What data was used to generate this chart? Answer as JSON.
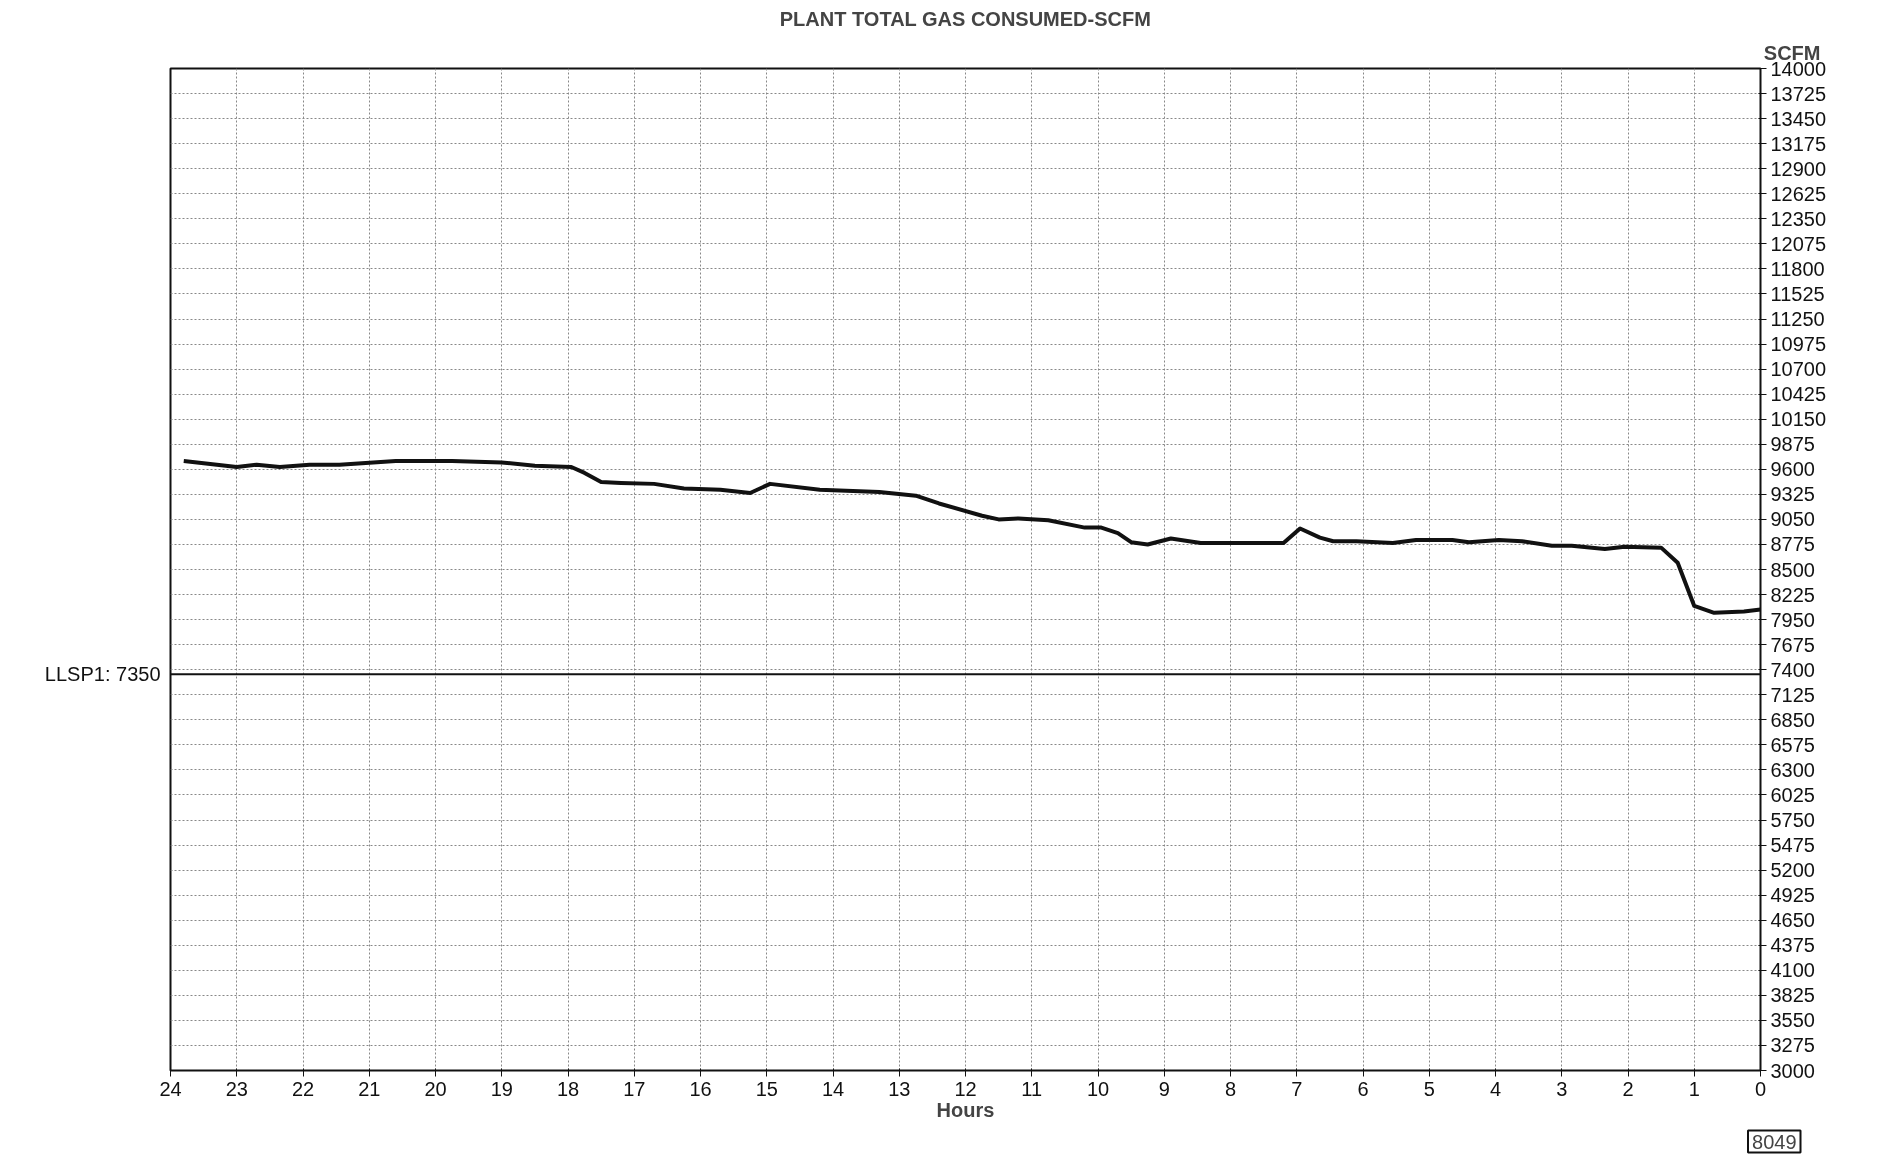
{
  "chart_data": {
    "type": "line",
    "title": "PLANT TOTAL GAS CONSUMED-SCFM",
    "xlabel": "Hours",
    "ylabel": "SCFM",
    "x": [
      23.8,
      23.0,
      22.7,
      22.35,
      21.9,
      21.45,
      20.6,
      19.75,
      19.0,
      18.5,
      17.95,
      17.75,
      17.5,
      17.2,
      16.7,
      16.25,
      15.7,
      15.25,
      14.95,
      14.2,
      13.3,
      12.75,
      12.4,
      11.75,
      11.5,
      11.2,
      10.75,
      10.2,
      9.95,
      9.7,
      9.5,
      9.25,
      8.9,
      8.45,
      7.9,
      7.2,
      6.95,
      6.65,
      6.45,
      6.1,
      5.55,
      5.2,
      4.65,
      4.4,
      3.95,
      3.6,
      3.15,
      2.85,
      2.35,
      2.05,
      1.5,
      1.25,
      1.0,
      0.7,
      0.25,
      0
    ],
    "series": [
      {
        "color": "#111111",
        "values": [
          9690,
          9625,
          9650,
          9625,
          9650,
          9650,
          9690,
          9690,
          9675,
          9640,
          9625,
          9560,
          9460,
          9450,
          9440,
          9390,
          9375,
          9340,
          9440,
          9375,
          9350,
          9310,
          9225,
          9090,
          9050,
          9060,
          9040,
          8960,
          8960,
          8900,
          8800,
          8775,
          8840,
          8790,
          8790,
          8790,
          8950,
          8850,
          8810,
          8810,
          8790,
          8825,
          8825,
          8800,
          8825,
          8810,
          8760,
          8760,
          8725,
          8750,
          8740,
          8575,
          8100,
          8025,
          8040,
          8060
        ]
      }
    ],
    "xlim": [
      24,
      0
    ],
    "xticks": [
      24,
      23,
      22,
      21,
      20,
      19,
      18,
      17,
      16,
      15,
      14,
      13,
      12,
      11,
      10,
      9,
      8,
      7,
      6,
      5,
      4,
      3,
      2,
      1,
      0
    ],
    "ylim": [
      3000,
      14000
    ],
    "yticks": [
      3000,
      3275,
      3550,
      3825,
      4100,
      4375,
      4650,
      4925,
      5200,
      5475,
      5750,
      6025,
      6300,
      6575,
      6850,
      7125,
      7400,
      7675,
      7950,
      8225,
      8500,
      8775,
      9050,
      9325,
      9600,
      9875,
      10150,
      10425,
      10700,
      10975,
      11250,
      11525,
      11800,
      12075,
      12350,
      12625,
      12900,
      13175,
      13450,
      13725,
      14000
    ],
    "ref_lines": [
      {
        "axis": "y",
        "value": 7350,
        "label": "LLSP1: 7350",
        "color": "#111111"
      }
    ],
    "annotations": [
      "8049"
    ],
    "grid": true,
    "marker": "none",
    "line_style": "solid"
  }
}
